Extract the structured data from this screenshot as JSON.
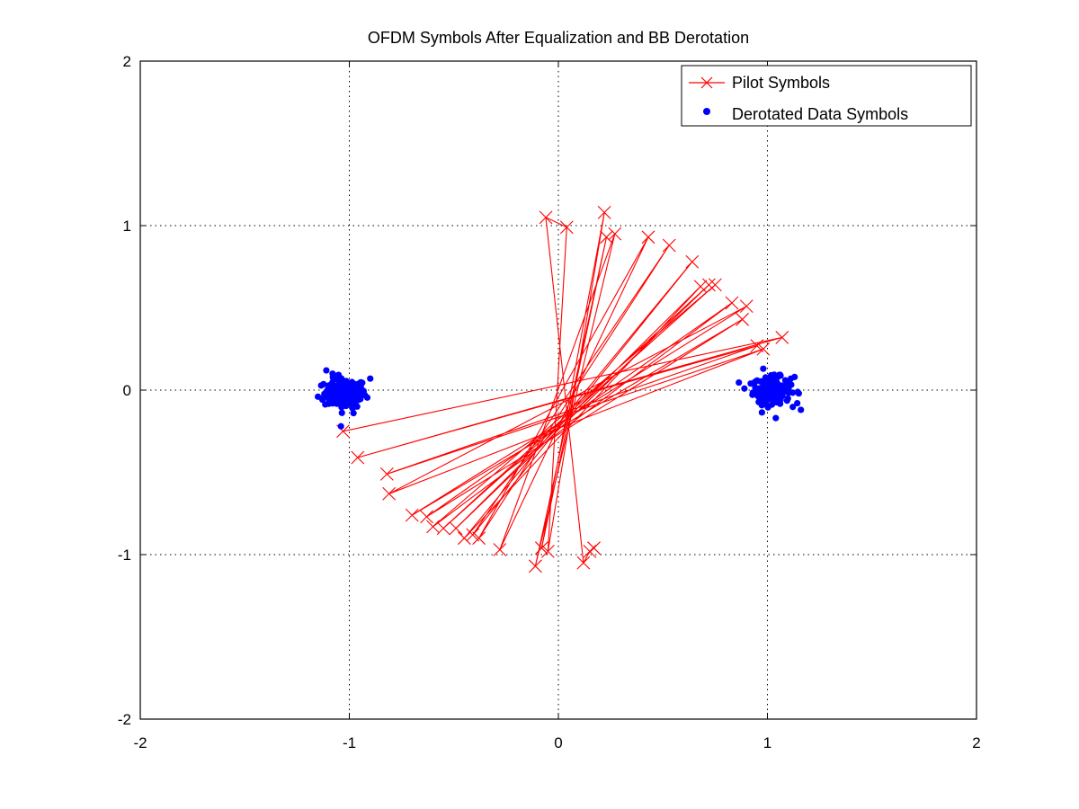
{
  "chart_data": {
    "type": "scatter",
    "title": "OFDM Symbols After Equalization and BB Derotation",
    "xlabel": "",
    "ylabel": "",
    "xlim": [
      -2,
      2
    ],
    "ylim": [
      -2,
      2
    ],
    "xticks": [
      -2,
      -1,
      0,
      1,
      2
    ],
    "yticks": [
      -2,
      -1,
      0,
      1,
      2
    ],
    "grid": true,
    "legend_position": "top-right",
    "series": [
      {
        "name": "Pilot Symbols",
        "style": "line-with-x-markers",
        "color": "#ff0000",
        "points": [
          [
            -1.03,
            -0.25
          ],
          [
            1.07,
            0.32
          ],
          [
            -0.96,
            -0.41
          ],
          [
            0.95,
            0.27
          ],
          [
            -0.82,
            -0.51
          ],
          [
            0.98,
            0.25
          ],
          [
            -0.81,
            -0.63
          ],
          [
            0.9,
            0.51
          ],
          [
            -0.7,
            -0.76
          ],
          [
            0.88,
            0.43
          ],
          [
            -0.63,
            -0.77
          ],
          [
            0.83,
            0.53
          ],
          [
            -0.6,
            -0.83
          ],
          [
            0.75,
            0.64
          ],
          [
            -0.55,
            -0.84
          ],
          [
            0.72,
            0.64
          ],
          [
            -0.49,
            -0.84
          ],
          [
            0.68,
            0.63
          ],
          [
            -0.45,
            -0.9
          ],
          [
            0.64,
            0.78
          ],
          [
            -0.41,
            -0.88
          ],
          [
            0.53,
            0.88
          ],
          [
            -0.38,
            -0.9
          ],
          [
            0.43,
            0.93
          ],
          [
            -0.28,
            -0.97
          ],
          [
            0.27,
            0.95
          ],
          [
            -0.11,
            -1.07
          ],
          [
            0.23,
            0.93
          ],
          [
            -0.08,
            -0.96
          ],
          [
            0.22,
            1.08
          ],
          [
            -0.05,
            -0.98
          ],
          [
            0.04,
            0.99
          ],
          [
            -0.06,
            1.05
          ],
          [
            0.12,
            -1.05
          ],
          [
            0.15,
            -0.98
          ],
          [
            0.17,
            -0.96
          ]
        ]
      },
      {
        "name": "Derotated Data Symbols",
        "style": "dots",
        "color": "#0000ff",
        "clusters": [
          {
            "center": [
              -1.02,
              -0.02
            ],
            "spread": [
              0.05,
              0.045
            ],
            "count": 160
          },
          {
            "center": [
              1.02,
              0.0
            ],
            "spread": [
              0.045,
              0.04
            ],
            "count": 160
          }
        ],
        "outliers": [
          [
            -1.15,
            -0.04
          ],
          [
            -1.11,
            0.12
          ],
          [
            -0.98,
            -0.14
          ],
          [
            -1.04,
            -0.22
          ],
          [
            -0.9,
            0.07
          ],
          [
            -1.08,
            0.1
          ],
          [
            1.15,
            -0.02
          ],
          [
            1.16,
            -0.12
          ],
          [
            1.04,
            -0.17
          ],
          [
            0.98,
            0.13
          ],
          [
            1.13,
            0.08
          ],
          [
            0.92,
            0.04
          ]
        ]
      }
    ]
  }
}
